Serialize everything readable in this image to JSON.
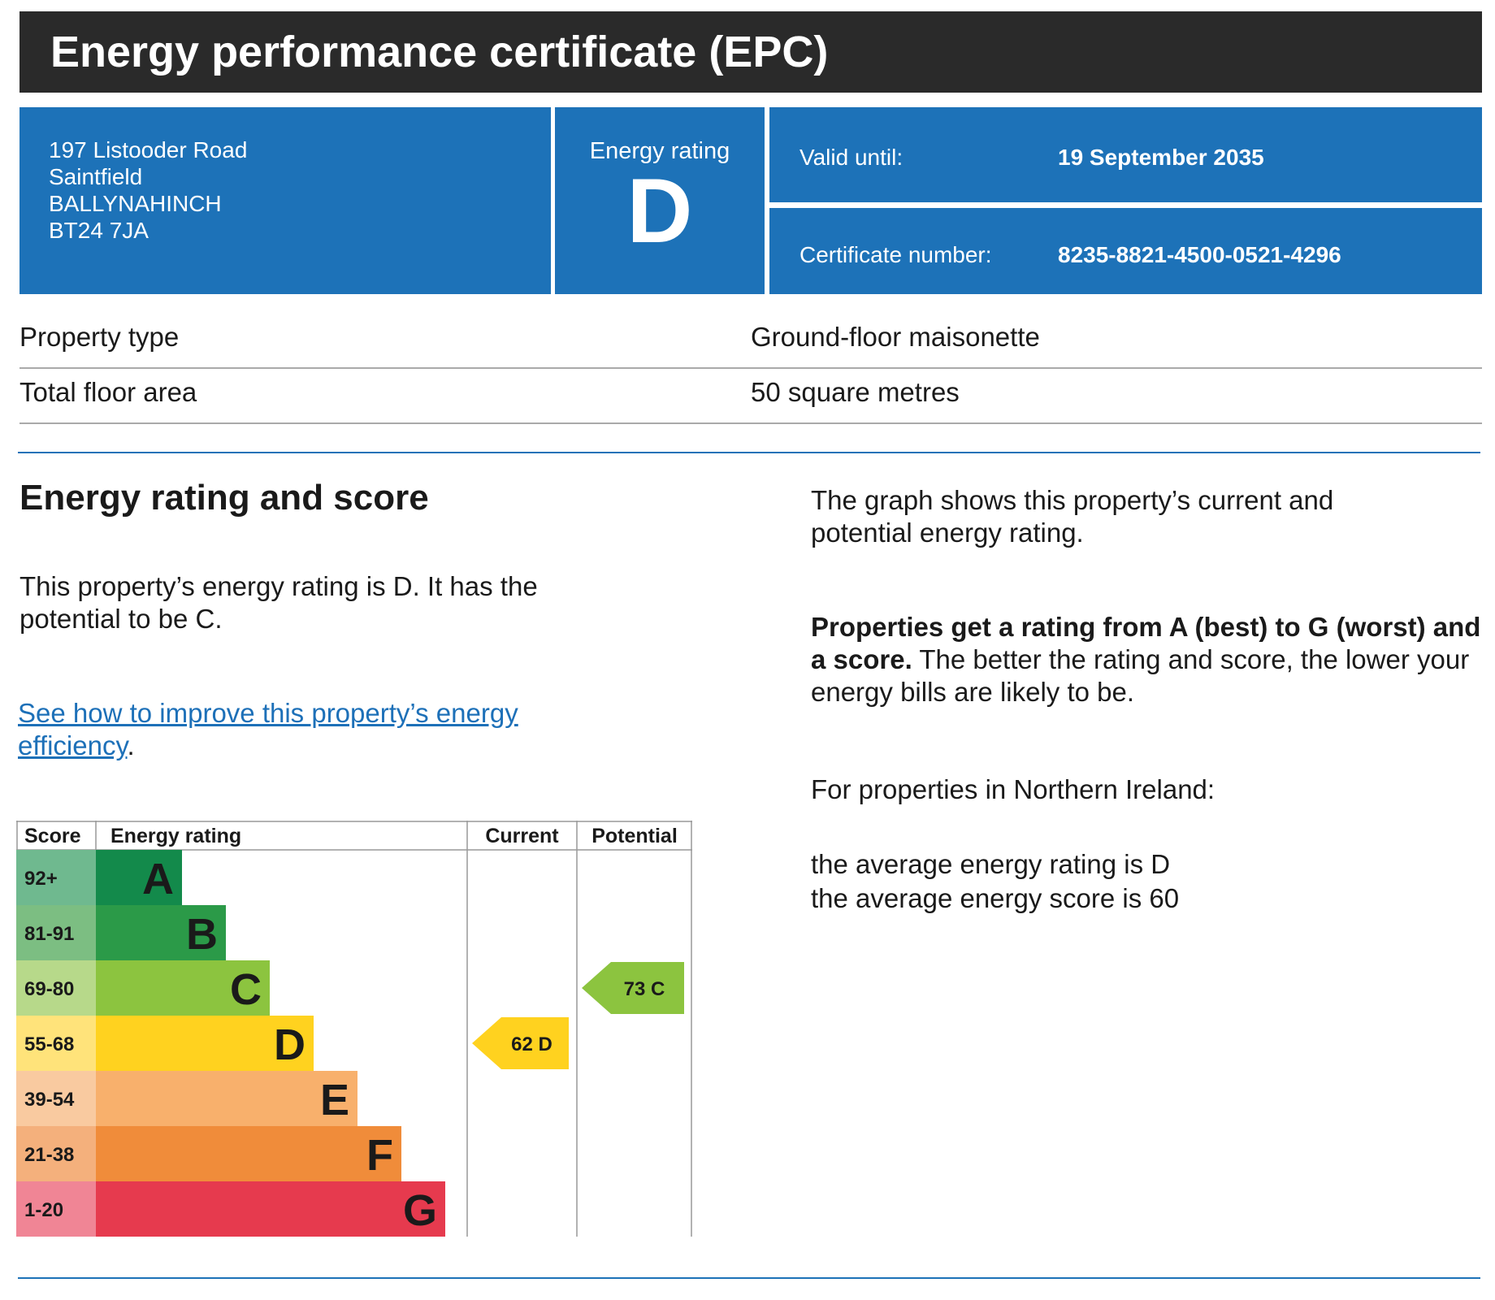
{
  "header": {
    "title": "Energy performance certificate (EPC)"
  },
  "address": {
    "lines": [
      "197 Listooder Road",
      "Saintfield",
      "BALLYNAHINCH",
      "BT24 7JA"
    ]
  },
  "rating_box": {
    "label": "Energy rating",
    "letter": "D"
  },
  "validity": {
    "label": "Valid until:",
    "value": "19 September 2035"
  },
  "certificate": {
    "label": "Certificate number:",
    "value": "8235-8821-4500-0521-4296"
  },
  "property": {
    "type_label": "Property type",
    "type_value": "Ground-floor maisonette",
    "area_label": "Total floor area",
    "area_value": "50 square metres"
  },
  "section": {
    "heading": "Energy rating and score",
    "summary": "This property’s energy rating is D. It has the potential to be C.",
    "link_text": "See how to improve this property’s energy efficiency",
    "link_suffix": ".",
    "graph_note": "The graph shows this property’s current and potential energy rating.",
    "rating_bold": "Properties get a rating from A (best) to G (worst) and a score.",
    "rating_rest": " The better the rating and score, the lower your energy bills are likely to be.",
    "ni_intro": "For properties in Northern Ireland:",
    "avg_rating": "the average energy rating is D",
    "avg_score": "the average energy score is 60"
  },
  "chart_data": {
    "type": "bar",
    "headers": {
      "score": "Score",
      "rating": "Energy rating",
      "current": "Current",
      "potential": "Potential"
    },
    "bands": [
      {
        "letter": "A",
        "range": "92+",
        "color": "#138a4b",
        "score_bg": "#6fb98f"
      },
      {
        "letter": "B",
        "range": "81-91",
        "color": "#2b9a48",
        "score_bg": "#7cbe82"
      },
      {
        "letter": "C",
        "range": "69-80",
        "color": "#8cc43f",
        "score_bg": "#b7d98a"
      },
      {
        "letter": "D",
        "range": "55-68",
        "color": "#ffd21f",
        "score_bg": "#ffe37a"
      },
      {
        "letter": "E",
        "range": "39-54",
        "color": "#f8b06c",
        "score_bg": "#f9caa0"
      },
      {
        "letter": "F",
        "range": "21-38",
        "color": "#f08c3a",
        "score_bg": "#f4b07c"
      },
      {
        "letter": "G",
        "range": "1-20",
        "color": "#e63a4e",
        "score_bg": "#f08595"
      }
    ],
    "current": {
      "score": 62,
      "letter": "D",
      "label": "62  D",
      "color": "#ffd21f"
    },
    "potential": {
      "score": 73,
      "letter": "C",
      "label": "73  C",
      "color": "#8cc43f"
    }
  }
}
